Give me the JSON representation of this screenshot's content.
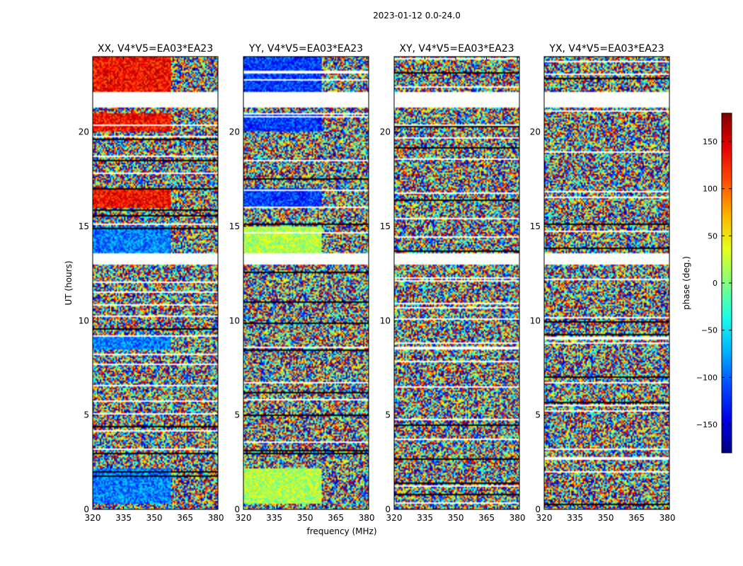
{
  "figure": {
    "suptitle": "2023-01-12 0.0-24.0",
    "xlabel": "frequency (MHz)",
    "ylabel": "UT (hours)",
    "colorbar_label": "phase (deg.)"
  },
  "chart_data": {
    "type": "heatmap",
    "title": "2023-01-12 0.0-24.0",
    "xlabel": "frequency (MHz)",
    "ylabel": "UT (hours)",
    "xlim": [
      320,
      381
    ],
    "ylim": [
      0,
      24
    ],
    "xticks": [
      "320",
      "335",
      "350",
      "365",
      "380"
    ],
    "xtick_values": [
      320,
      335,
      350,
      365,
      380
    ],
    "yticks": [
      "0",
      "5",
      "10",
      "15",
      "20"
    ],
    "ytick_values": [
      0,
      5,
      10,
      15,
      20
    ],
    "colormap": "jet",
    "colorbar": {
      "label": "phase (deg.)",
      "range": [
        -180,
        180
      ],
      "ticks": [
        "−150",
        "−100",
        "−50",
        "0",
        "50",
        "100",
        "150"
      ],
      "tick_values": [
        -150,
        -100,
        -50,
        0,
        50,
        100,
        150
      ]
    },
    "panels": [
      {
        "title": "XX, V4*V5=EA03*EA23",
        "mode": "XX"
      },
      {
        "title": "YY, V4*V5=EA03*EA23",
        "mode": "YY"
      },
      {
        "title": "XY, V4*V5=EA03*EA23",
        "mode": "XY"
      },
      {
        "title": "YX, V4*V5=EA03*EA23",
        "mode": "YX"
      }
    ],
    "flagged_gaps_ut": [
      [
        21.3,
        22.1
      ],
      [
        13.0,
        13.6
      ]
    ]
  }
}
